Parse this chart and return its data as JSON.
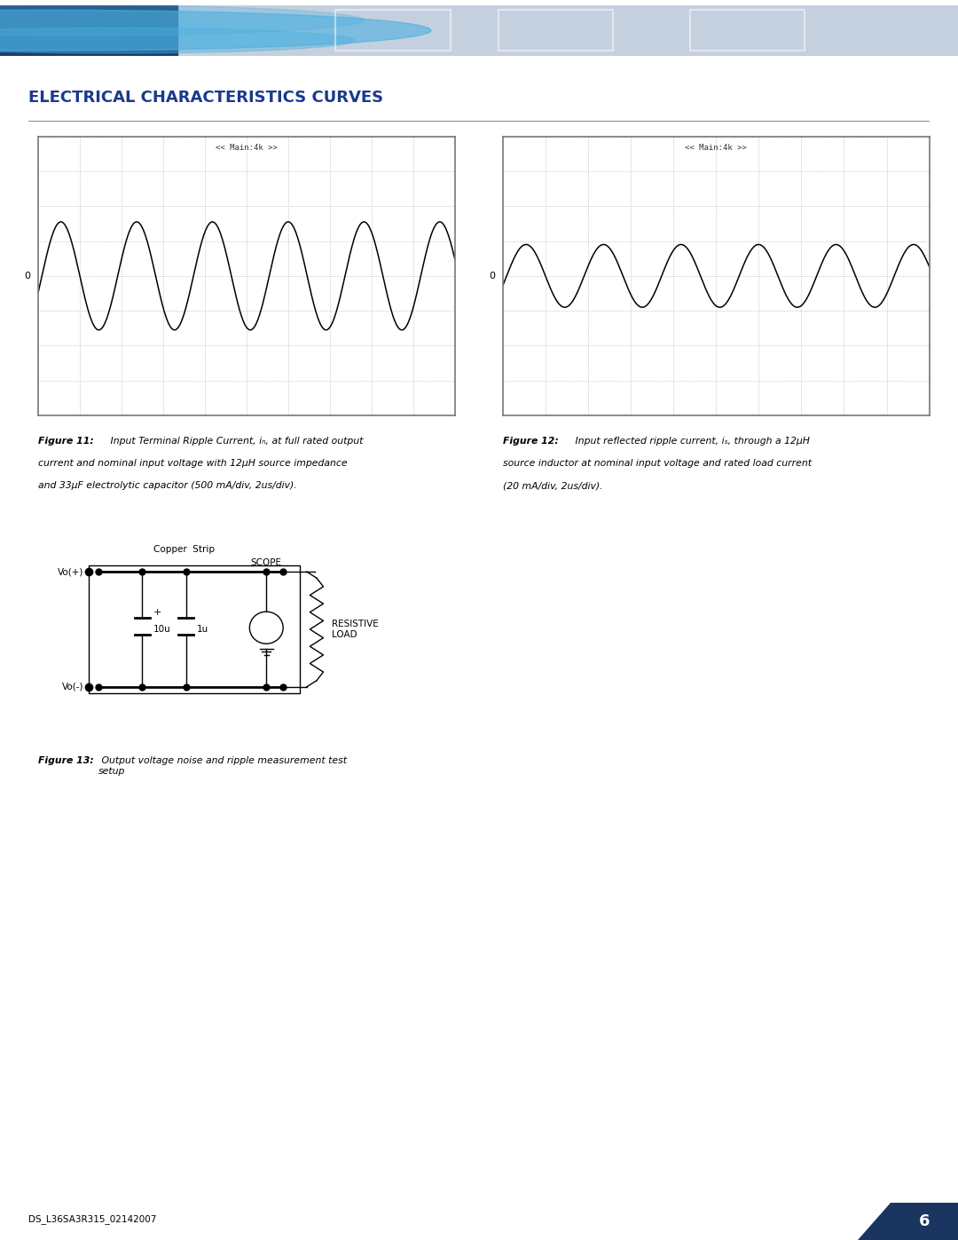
{
  "title": "ELECTRICAL CHARACTERISTICS CURVES",
  "title_color": "#1a3a8c",
  "title_fontsize": 13,
  "fig_bg": "#ffffff",
  "header_left_color": "#2060a0",
  "header_right_color": "#c5d0de",
  "osc_label1": "<< Main:4k >>",
  "osc_label2": "<< Main:4k >>",
  "fig11_line1_bold": "Figure 11:",
  "fig11_line1_rest": " Input Terminal Ripple Current, iₙ, at full rated output",
  "fig11_line2": "current and nominal input voltage with 12μH source impedance",
  "fig11_line3": "and 33μF electrolytic capacitor (500 mA/div, 2us/div).",
  "fig12_line1_bold": "Figure 12:",
  "fig12_line1_rest": " Input reflected ripple current, iₛ, through a 12μH",
  "fig12_line2": "source inductor at nominal input voltage and rated load current",
  "fig12_line3": "(20 mA/div, 2us/div).",
  "fig13_bold": "Figure 13:",
  "fig13_rest": " Output voltage noise and ripple measurement test\nsetup",
  "footer_text": "DS_L36SA3R315_02142007",
  "page_number": "6",
  "osc_bg": "#ffffff",
  "osc_grid_color": "#999999",
  "osc_border_color": "#777777",
  "wave1_amplitude": 1.55,
  "wave1_cycles": 5.5,
  "wave2_amplitude": 0.9,
  "wave2_cycles": 5.5,
  "osc_ylim": 4.0,
  "osc_xdivs": 10,
  "osc_ydivs": 8,
  "circuit_Vo_pos_label": "Vo(+)",
  "circuit_Vo_neg_label": "Vo(-)",
  "circuit_copper_label": "Copper  Strip",
  "circuit_cap1_label": "10u",
  "circuit_cap2_label": "1u",
  "circuit_scope_label": "SCOPE",
  "circuit_load_label": "RESISTIVE\nLOAD"
}
